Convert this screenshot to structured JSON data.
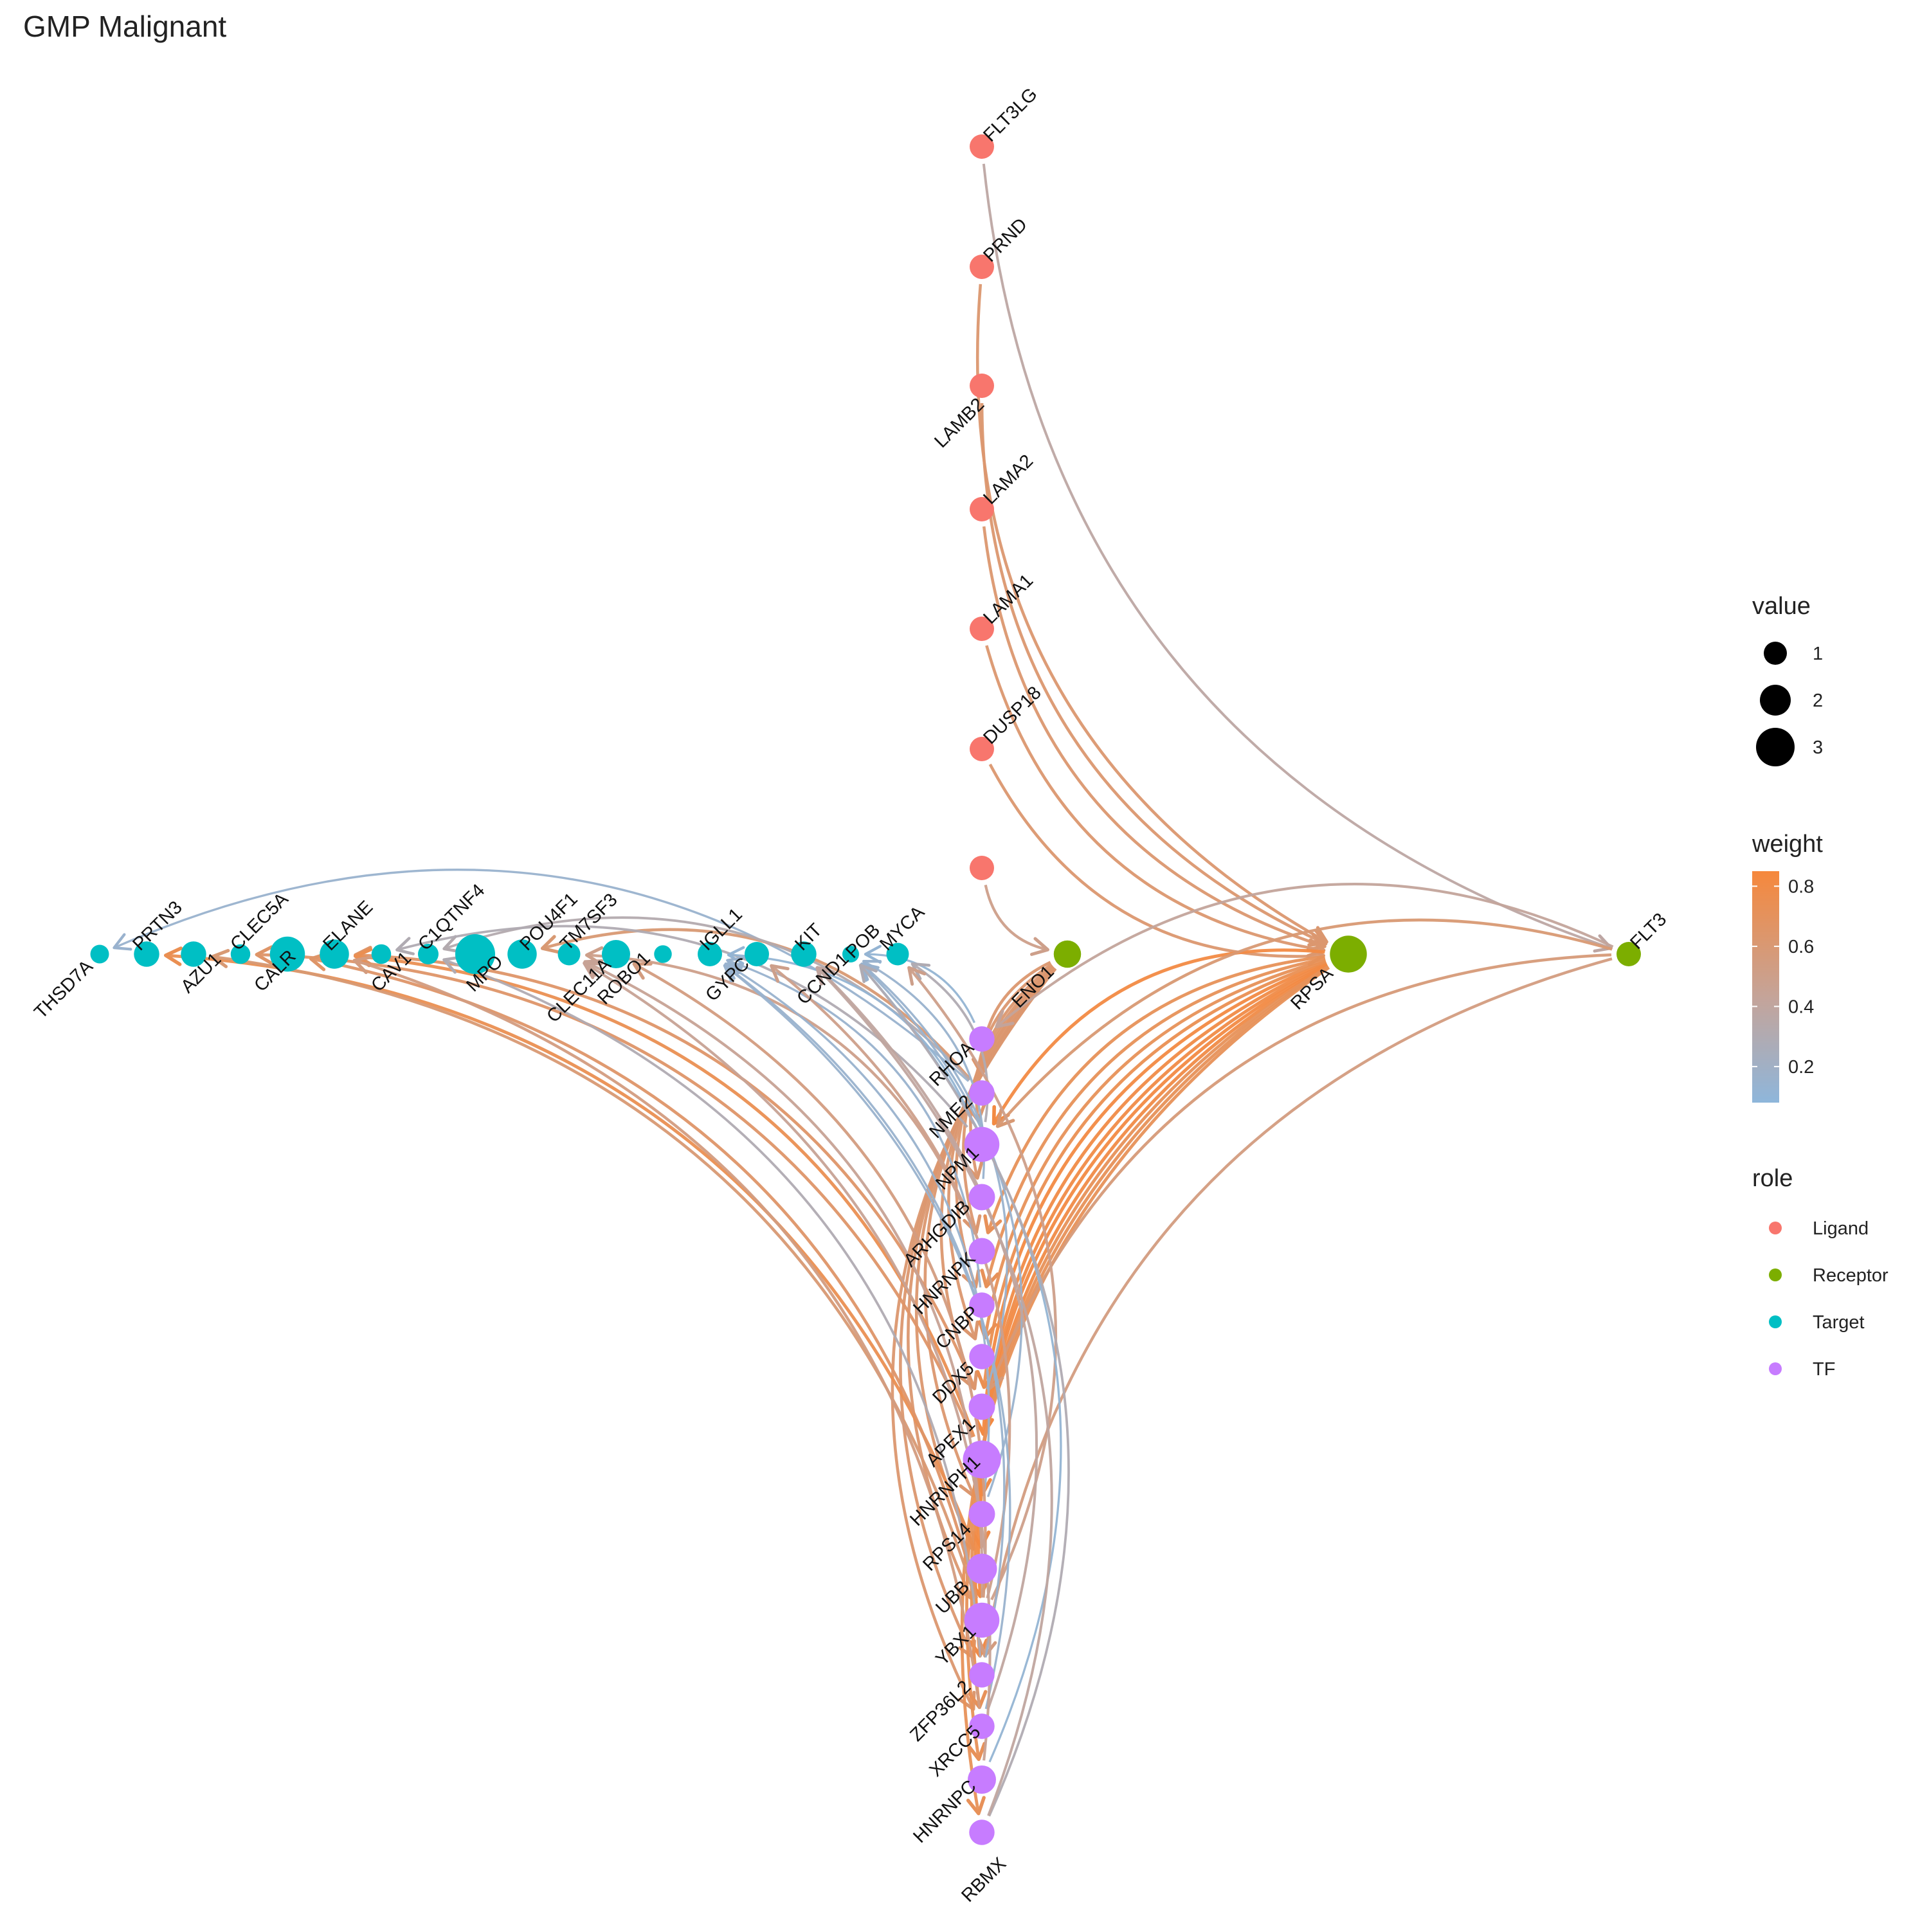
{
  "title": "GMP Malignant",
  "colors": {
    "Ligand": "#F8766D",
    "Receptor": "#7CAE00",
    "Target": "#00BFC4",
    "TF": "#C77CFF",
    "weight_low": "#8EB6DB",
    "weight_mid": "#C4A49A",
    "weight_high": "#F6883C"
  },
  "legend": {
    "value": {
      "title": "value",
      "entries": [
        {
          "label": "1",
          "size": 1
        },
        {
          "label": "2",
          "size": 2
        },
        {
          "label": "3",
          "size": 3
        }
      ]
    },
    "weight": {
      "title": "weight",
      "min": 0.08,
      "max": 0.85,
      "ticks": [
        "0.2",
        "0.4",
        "0.6",
        "0.8"
      ],
      "tick_values": [
        0.2,
        0.4,
        0.6,
        0.8
      ]
    },
    "role": {
      "title": "role",
      "entries": [
        {
          "label": "Ligand",
          "role": "Ligand"
        },
        {
          "label": "Receptor",
          "role": "Receptor"
        },
        {
          "label": "Target",
          "role": "Target"
        },
        {
          "label": "TF",
          "role": "TF"
        }
      ]
    }
  },
  "nodes": [
    {
      "id": "FLT3LG",
      "role": "Ligand",
      "value": 1.2
    },
    {
      "id": "PRND",
      "role": "Ligand",
      "value": 1.2
    },
    {
      "id": "LAMB2",
      "role": "Ligand",
      "value": 1.2
    },
    {
      "id": "LAMA2",
      "role": "Ligand",
      "value": 1.2
    },
    {
      "id": "LAMA1",
      "role": "Ligand",
      "value": 1.2
    },
    {
      "id": "DUSP18",
      "role": "Ligand",
      "value": 1.2
    },
    {
      "id": "POB",
      "role": "Ligand",
      "value": 1.2
    },
    {
      "id": "ENO1",
      "role": "Receptor",
      "value": 1.5
    },
    {
      "id": "RPSA",
      "role": "Receptor",
      "value": 2.5
    },
    {
      "id": "FLT3",
      "role": "Receptor",
      "value": 1.2
    },
    {
      "id": "THSD7A",
      "role": "Target",
      "value": 0.6
    },
    {
      "id": "PRTN3",
      "role": "Target",
      "value": 1.3
    },
    {
      "id": "AZU1",
      "role": "Target",
      "value": 1.3
    },
    {
      "id": "CLEC5A",
      "role": "Target",
      "value": 0.7
    },
    {
      "id": "CALR",
      "role": "Target",
      "value": 2.3
    },
    {
      "id": "ELANE",
      "role": "Target",
      "value": 1.7
    },
    {
      "id": "CAV1",
      "role": "Target",
      "value": 0.7
    },
    {
      "id": "C1QTNF4",
      "role": "Target",
      "value": 0.8
    },
    {
      "id": "MPO",
      "role": "Target",
      "value": 2.8
    },
    {
      "id": "POU4F1",
      "role": "Target",
      "value": 1.7
    },
    {
      "id": "TM7SF3",
      "role": "Target",
      "value": 1.0
    },
    {
      "id": "CLEC11A",
      "role": "Target",
      "value": 1.6
    },
    {
      "id": "ROBO1",
      "role": "Target",
      "value": 0.5
    },
    {
      "id": "IGLL1",
      "role": "Target",
      "value": 1.2
    },
    {
      "id": "GYPC",
      "role": "Target",
      "value": 1.2
    },
    {
      "id": "KIT",
      "role": "Target",
      "value": 1.3
    },
    {
      "id": "CCND1",
      "role": "Target",
      "value": 0.4
    },
    {
      "id": "MYCA",
      "role": "Target",
      "value": 1.0
    },
    {
      "id": "RHOA",
      "role": "TF",
      "value": 1.3
    },
    {
      "id": "NME2",
      "role": "TF",
      "value": 1.3
    },
    {
      "id": "NPM1",
      "role": "TF",
      "value": 2.3
    },
    {
      "id": "ARHGDIB",
      "role": "TF",
      "value": 1.4
    },
    {
      "id": "HNRNPK",
      "role": "TF",
      "value": 1.4
    },
    {
      "id": "CNBP",
      "role": "TF",
      "value": 1.3
    },
    {
      "id": "DDX5",
      "role": "TF",
      "value": 1.3
    },
    {
      "id": "APEX1",
      "role": "TF",
      "value": 1.4
    },
    {
      "id": "HNRNPH1",
      "role": "TF",
      "value": 2.6
    },
    {
      "id": "RPS14",
      "role": "TF",
      "value": 1.4
    },
    {
      "id": "UBB",
      "role": "TF",
      "value": 1.8
    },
    {
      "id": "YBX1",
      "role": "TF",
      "value": 2.3
    },
    {
      "id": "ZFP36L2",
      "role": "TF",
      "value": 1.3
    },
    {
      "id": "XRCC5",
      "role": "TF",
      "value": 1.3
    },
    {
      "id": "HNRNPC",
      "role": "TF",
      "value": 1.6
    },
    {
      "id": "RBMX",
      "role": "TF",
      "value": 1.3
    }
  ],
  "edges": [
    {
      "from": "FLT3LG",
      "to": "FLT3",
      "weight": 0.38
    },
    {
      "from": "PRND",
      "to": "RPSA",
      "weight": 0.62
    },
    {
      "from": "LAMB2",
      "to": "RPSA",
      "weight": 0.62
    },
    {
      "from": "LAMA2",
      "to": "RPSA",
      "weight": 0.62
    },
    {
      "from": "LAMA1",
      "to": "RPSA",
      "weight": 0.62
    },
    {
      "from": "DUSP18",
      "to": "RPSA",
      "weight": 0.62
    },
    {
      "from": "POB",
      "to": "ENO1",
      "weight": 0.5
    },
    {
      "from": "ENO1",
      "to": "NME2",
      "weight": 0.62
    },
    {
      "from": "ENO1",
      "to": "NPM1",
      "weight": 0.62
    },
    {
      "from": "ENO1",
      "to": "ARHGDIB",
      "weight": 0.62
    },
    {
      "from": "ENO1",
      "to": "HNRNPK",
      "weight": 0.62
    },
    {
      "from": "ENO1",
      "to": "CNBP",
      "weight": 0.62
    },
    {
      "from": "ENO1",
      "to": "DDX5",
      "weight": 0.62
    },
    {
      "from": "ENO1",
      "to": "APEX1",
      "weight": 0.62
    },
    {
      "from": "ENO1",
      "to": "RPS14",
      "weight": 0.62
    },
    {
      "from": "ENO1",
      "to": "UBB",
      "weight": 0.62
    },
    {
      "from": "ENO1",
      "to": "YBX1",
      "weight": 0.62
    },
    {
      "from": "ENO1",
      "to": "ZFP36L2",
      "weight": 0.62
    },
    {
      "from": "ENO1",
      "to": "XRCC5",
      "weight": 0.62
    },
    {
      "from": "RPSA",
      "to": "NPM1",
      "weight": 0.82
    },
    {
      "from": "RPSA",
      "to": "HNRNPK",
      "weight": 0.72
    },
    {
      "from": "RPSA",
      "to": "CNBP",
      "weight": 0.72
    },
    {
      "from": "RPSA",
      "to": "DDX5",
      "weight": 0.72
    },
    {
      "from": "RPSA",
      "to": "HNRNPH1",
      "weight": 0.82
    },
    {
      "from": "RPSA",
      "to": "RPS14",
      "weight": 0.8
    },
    {
      "from": "RPSA",
      "to": "UBB",
      "weight": 0.8
    },
    {
      "from": "RPSA",
      "to": "YBX1",
      "weight": 0.82
    },
    {
      "from": "RPSA",
      "to": "ZFP36L2",
      "weight": 0.8
    },
    {
      "from": "RPSA",
      "to": "XRCC5",
      "weight": 0.72
    },
    {
      "from": "RPSA",
      "to": "HNRNPC",
      "weight": 0.72
    },
    {
      "from": "RPSA",
      "to": "RBMX",
      "weight": 0.72
    },
    {
      "from": "RPSA",
      "to": "APEX1",
      "weight": 0.75
    },
    {
      "from": "FLT3",
      "to": "RHOA",
      "weight": 0.42
    },
    {
      "from": "FLT3",
      "to": "NPM1",
      "weight": 0.6
    },
    {
      "from": "FLT3",
      "to": "ZFP36L2",
      "weight": 0.55
    },
    {
      "from": "FLT3",
      "to": "APEX1",
      "weight": 0.58
    },
    {
      "from": "NME2",
      "to": "THSD7A",
      "weight": 0.15
    },
    {
      "from": "NME2",
      "to": "POU4F1",
      "weight": 0.6
    },
    {
      "from": "NME2",
      "to": "C1QTNF4",
      "weight": 0.32
    },
    {
      "from": "RHOA",
      "to": "CCND1",
      "weight": 0.12
    },
    {
      "from": "NPM1",
      "to": "CAV1",
      "weight": 0.3
    },
    {
      "from": "NPM1",
      "to": "IGLL1",
      "weight": 0.12
    },
    {
      "from": "NPM1",
      "to": "MYCA",
      "weight": 0.3
    },
    {
      "from": "HNRNPK",
      "to": "TM7SF3",
      "weight": 0.5
    },
    {
      "from": "ARHGDIB",
      "to": "CCND1",
      "weight": 0.15
    },
    {
      "from": "CNBP",
      "to": "IGLL1",
      "weight": 0.15
    },
    {
      "from": "APEX1",
      "to": "ELANE",
      "weight": 0.65
    },
    {
      "from": "APEX1",
      "to": "CCND1",
      "weight": 0.15
    },
    {
      "from": "HNRNPH1",
      "to": "ELANE",
      "weight": 0.75
    },
    {
      "from": "HNRNPH1",
      "to": "CLEC5A",
      "weight": 0.65
    },
    {
      "from": "RPS14",
      "to": "IGLL1",
      "weight": 0.15
    },
    {
      "from": "RPS14",
      "to": "CCND1",
      "weight": 0.15
    },
    {
      "from": "UBB",
      "to": "PRTN3",
      "weight": 0.75
    },
    {
      "from": "YBX1",
      "to": "CALR",
      "weight": 0.65
    },
    {
      "from": "YBX1",
      "to": "AZU1",
      "weight": 0.6
    },
    {
      "from": "YBX1",
      "to": "TM7SF3",
      "weight": 0.45
    },
    {
      "from": "YBX1",
      "to": "CLEC11A",
      "weight": 0.55
    },
    {
      "from": "YBX1",
      "to": "GYPC",
      "weight": 0.5
    },
    {
      "from": "YBX1",
      "to": "MYCA",
      "weight": 0.5
    },
    {
      "from": "ZFP36L2",
      "to": "C1QTNF4",
      "weight": 0.3
    },
    {
      "from": "ZFP36L2",
      "to": "IGLL1",
      "weight": 0.15
    },
    {
      "from": "XRCC5",
      "to": "ELANE",
      "weight": 0.55
    },
    {
      "from": "XRCC5",
      "to": "IGLL1",
      "weight": 0.15
    },
    {
      "from": "XRCC5",
      "to": "KIT",
      "weight": 0.4
    },
    {
      "from": "HNRNPC",
      "to": "CCND1",
      "weight": 0.12
    },
    {
      "from": "HNRNPC",
      "to": "TM7SF3",
      "weight": 0.45
    },
    {
      "from": "RBMX",
      "to": "CCND1",
      "weight": 0.3
    },
    {
      "from": "RBMX",
      "to": "KIT",
      "weight": 0.4
    }
  ]
}
